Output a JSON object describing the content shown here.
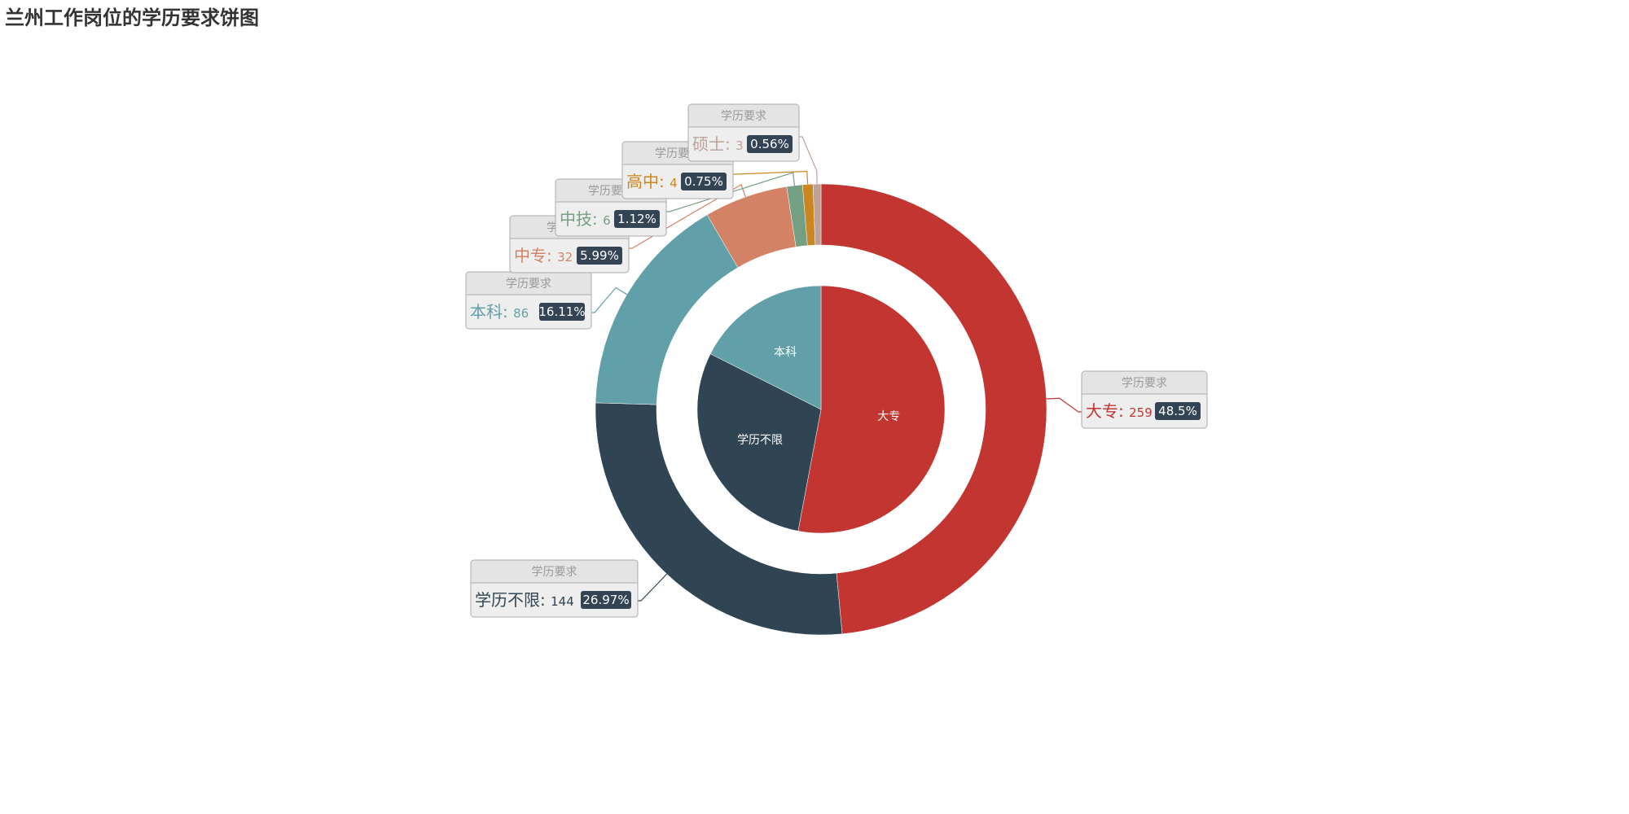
{
  "title": "兰州工作岗位的学历要求饼图",
  "chart_data": {
    "type": "pie",
    "title": "兰州工作岗位的学历要求饼图",
    "series_name": "学历要求",
    "outer_ring": {
      "name": "学历要求",
      "slices": [
        {
          "label": "大专",
          "value": 259,
          "percent": "48.5%",
          "color": "#c23531"
        },
        {
          "label": "学历不限",
          "value": 144,
          "percent": "26.97%",
          "color": "#2f4554"
        },
        {
          "label": "本科",
          "value": 86,
          "percent": "16.11%",
          "color": "#61a0a8"
        },
        {
          "label": "中专",
          "value": 32,
          "percent": "5.99%",
          "color": "#d48265"
        },
        {
          "label": "中技",
          "value": 6,
          "percent": "1.12%",
          "color": "#749f83"
        },
        {
          "label": "高中",
          "value": 4,
          "percent": "0.75%",
          "color": "#ca8622"
        },
        {
          "label": "硕士",
          "value": 3,
          "percent": "0.56%",
          "color": "#bda29a"
        }
      ]
    },
    "inner_pie": {
      "slices": [
        {
          "label": "大专",
          "value": 259,
          "color": "#c23531"
        },
        {
          "label": "学历不限",
          "value": 144,
          "color": "#2f4554"
        },
        {
          "label": "本科",
          "value": 86,
          "color": "#61a0a8"
        }
      ]
    }
  }
}
